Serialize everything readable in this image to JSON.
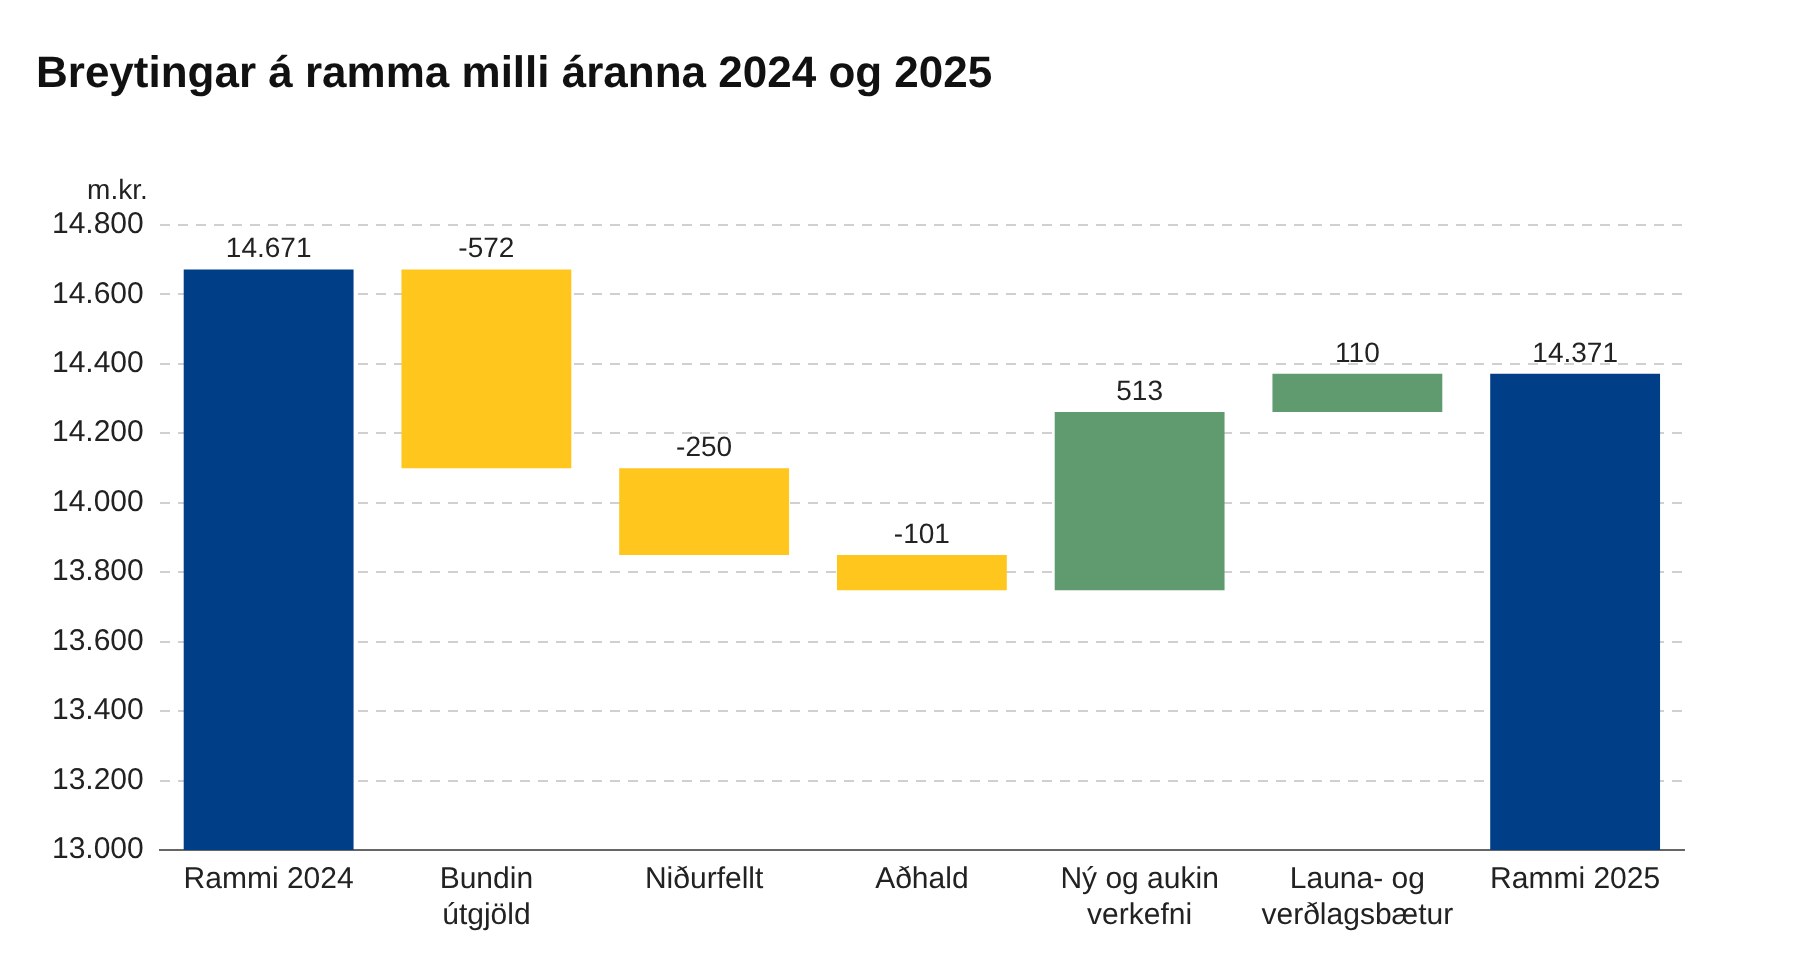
{
  "chart_data": {
    "type": "bar",
    "title": "Breytingar á ramma milli áranna 2024 og 2025",
    "ylabel": "m.kr.",
    "categories": [
      "Rammi 2024",
      "Bundin útgjöld",
      "Niðurfellt",
      "Aðhald",
      "Ný og aukin verkefni",
      "Launa- og verðlagsbætur",
      "Rammi 2025"
    ],
    "values": [
      14671,
      -572,
      -250,
      -101,
      513,
      110,
      14371
    ],
    "base": [
      null,
      14671,
      14099,
      13849,
      13748,
      14261,
      null
    ],
    "colors": [
      "#003f87",
      "#ffc61e",
      "#ffc61e",
      "#ffc61e",
      "#5f9b6e",
      "#5f9b6e",
      "#003f87"
    ],
    "value_labels": [
      "14.671",
      "-572",
      "-250",
      "-101",
      "513",
      "110",
      "14.371"
    ],
    "ylim": [
      13000,
      14800
    ],
    "yticks": [
      {
        "value": 13000,
        "label": "13.000"
      },
      {
        "value": 13200,
        "label": "13.200"
      },
      {
        "value": 13400,
        "label": "13.400"
      },
      {
        "value": 13600,
        "label": "13.600"
      },
      {
        "value": 13800,
        "label": "13.800"
      },
      {
        "value": 14000,
        "label": "14.000"
      },
      {
        "value": 14200,
        "label": "14.200"
      },
      {
        "value": 14400,
        "label": "14.400"
      },
      {
        "value": 14600,
        "label": "14.600"
      },
      {
        "value": 14800,
        "label": "14.800"
      }
    ],
    "grid": "y",
    "legend": false
  }
}
